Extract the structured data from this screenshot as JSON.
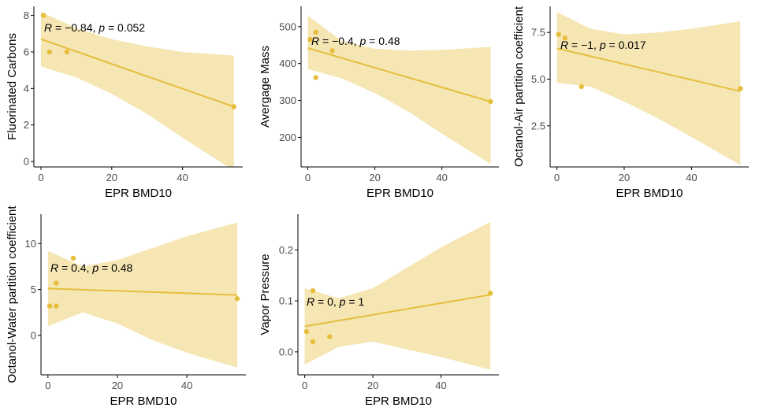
{
  "colors": {
    "accent": "#E6BE3C",
    "band": "#F5E6B4",
    "axis": "#000000"
  },
  "chart_data": [
    {
      "type": "scatter",
      "xlabel": "EPR BMD10",
      "ylabel": "Fluorinated Carbons",
      "xlim": [
        -2,
        57
      ],
      "ylim": [
        -0.3,
        8.5
      ],
      "xticks": [
        0,
        20,
        40
      ],
      "xtick_labels": [
        "0",
        "20",
        "40"
      ],
      "yticks": [
        0,
        2,
        4,
        6,
        8
      ],
      "ytick_labels": [
        "0",
        "2",
        "4",
        "6",
        "8"
      ],
      "points": [
        [
          0.7,
          8
        ],
        [
          2.4,
          6
        ],
        [
          7.3,
          6
        ],
        [
          54.5,
          3
        ]
      ],
      "fit": {
        "x": [
          0,
          54.5
        ],
        "y": [
          6.7,
          3.0
        ]
      },
      "band": [
        [
          0,
          5.2,
          8.2
        ],
        [
          10,
          4.6,
          7.3
        ],
        [
          20,
          3.7,
          6.7
        ],
        [
          30,
          2.6,
          6.3
        ],
        [
          40,
          1.3,
          6.0
        ],
        [
          54.5,
          -0.5,
          5.8
        ]
      ],
      "annotation": {
        "r_label": "R",
        "r_value": " = −0.84, ",
        "p_label": "p",
        "p_value": " = 0.052"
      }
    },
    {
      "type": "scatter",
      "xlabel": "EPR BMD10",
      "ylabel": "Avergage Mass",
      "xlim": [
        -2,
        57
      ],
      "ylim": [
        120,
        555
      ],
      "xticks": [
        0,
        20,
        40
      ],
      "xtick_labels": [
        "0",
        "20",
        "40"
      ],
      "yticks": [
        200,
        300,
        400,
        500
      ],
      "ytick_labels": [
        "200",
        "300",
        "400",
        "500"
      ],
      "points": [
        [
          0.7,
          465
        ],
        [
          2.4,
          485
        ],
        [
          2.4,
          362
        ],
        [
          7.3,
          435
        ],
        [
          54.5,
          297
        ]
      ],
      "fit": {
        "x": [
          0,
          54.5
        ],
        "y": [
          442,
          297
        ]
      },
      "band": [
        [
          0,
          385,
          530
        ],
        [
          10,
          360,
          462
        ],
        [
          20,
          320,
          440
        ],
        [
          30,
          270,
          435
        ],
        [
          40,
          210,
          437
        ],
        [
          54.5,
          128,
          445
        ]
      ],
      "annotation": {
        "r_label": "R",
        "r_value": " = −0.4, ",
        "p_label": "p",
        "p_value": " = 0.48"
      }
    },
    {
      "type": "scatter",
      "xlabel": "EPR BMD10",
      "ylabel": "Octanol-Air partition coefficient",
      "xlim": [
        -2,
        57
      ],
      "ylim": [
        0.3,
        8.9
      ],
      "xticks": [
        0,
        20,
        40
      ],
      "xtick_labels": [
        "0",
        "20",
        "40"
      ],
      "yticks": [
        2.5,
        5.0,
        7.5
      ],
      "ytick_labels": [
        "2.5",
        "5.0",
        "7.5"
      ],
      "points": [
        [
          0.5,
          7.4
        ],
        [
          2.4,
          7.2
        ],
        [
          7.3,
          4.6
        ],
        [
          54.5,
          4.5
        ]
      ],
      "fit": {
        "x": [
          0,
          54.5
        ],
        "y": [
          6.65,
          4.35
        ]
      },
      "band": [
        [
          0,
          4.8,
          8.6
        ],
        [
          10,
          4.6,
          7.7
        ],
        [
          20,
          3.8,
          7.4
        ],
        [
          30,
          2.9,
          7.5
        ],
        [
          40,
          1.9,
          7.7
        ],
        [
          54.5,
          0.4,
          8.1
        ]
      ],
      "annotation": {
        "r_label": "R",
        "r_value": " = −1, ",
        "p_label": "p",
        "p_value": " = 0.017"
      }
    },
    {
      "type": "scatter",
      "xlabel": "EPR BMD10",
      "ylabel": "Octanol-Water partition coefficient",
      "xlim": [
        -2,
        57
      ],
      "ylim": [
        -4.3,
        13.2
      ],
      "xticks": [
        0,
        20,
        40
      ],
      "xtick_labels": [
        "0",
        "20",
        "40"
      ],
      "yticks": [
        0,
        5,
        10
      ],
      "ytick_labels": [
        "0",
        "5",
        "10"
      ],
      "points": [
        [
          0.5,
          3.2
        ],
        [
          2.4,
          3.2
        ],
        [
          2.4,
          5.7
        ],
        [
          7.3,
          8.4
        ],
        [
          54.5,
          4.0
        ]
      ],
      "fit": {
        "x": [
          0,
          54.5
        ],
        "y": [
          5.1,
          4.4
        ]
      },
      "band": [
        [
          0,
          1.0,
          9.2
        ],
        [
          10,
          2.5,
          7.5
        ],
        [
          20,
          1.3,
          8.2
        ],
        [
          30,
          -0.5,
          9.5
        ],
        [
          40,
          -1.9,
          10.8
        ],
        [
          54.5,
          -3.5,
          12.3
        ]
      ],
      "annotation": {
        "r_label": "R",
        "r_value": " = 0.4, ",
        "p_label": "p",
        "p_value": " = 0.48"
      }
    },
    {
      "type": "scatter",
      "xlabel": "EPR BMD10",
      "ylabel": "Vapor Pressure",
      "xlim": [
        -2,
        57
      ],
      "ylim": [
        -0.045,
        0.27
      ],
      "xticks": [
        0,
        20,
        40
      ],
      "xtick_labels": [
        "0",
        "20",
        "40"
      ],
      "yticks": [
        0.0,
        0.1,
        0.2
      ],
      "ytick_labels": [
        "0.0",
        "0.1",
        "0.2"
      ],
      "points": [
        [
          0.5,
          0.04
        ],
        [
          2.4,
          0.12
        ],
        [
          2.4,
          0.02
        ],
        [
          7.3,
          0.03
        ],
        [
          54.5,
          0.115
        ]
      ],
      "fit": {
        "x": [
          0,
          54.5
        ],
        "y": [
          0.05,
          0.112
        ]
      },
      "band": [
        [
          0,
          -0.025,
          0.125
        ],
        [
          10,
          0.01,
          0.105
        ],
        [
          20,
          0.02,
          0.125
        ],
        [
          30,
          0.005,
          0.165
        ],
        [
          40,
          -0.01,
          0.205
        ],
        [
          54.5,
          -0.035,
          0.255
        ]
      ],
      "annotation": {
        "r_label": "R",
        "r_value": " = 0, ",
        "p_label": "p",
        "p_value": " = 1"
      }
    }
  ]
}
